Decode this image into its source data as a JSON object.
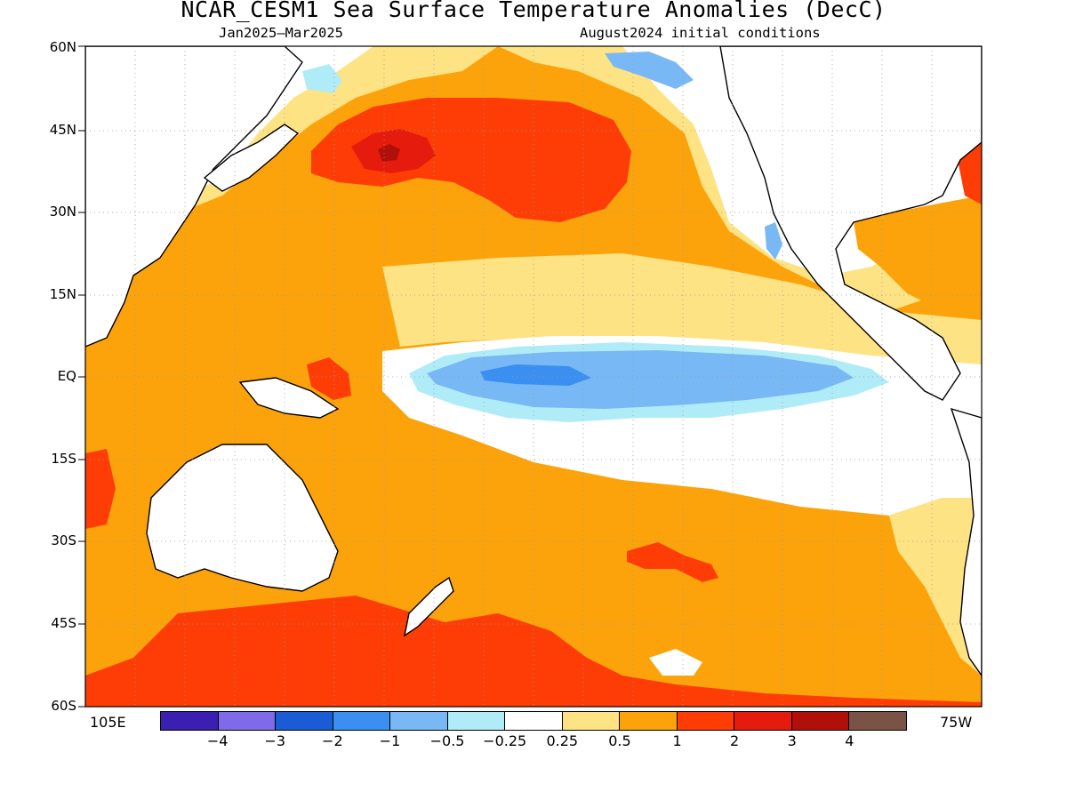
{
  "title": "NCAR_CESM1 Sea Surface Temperature Anomalies (DecC)",
  "subtitle_left": "Jan2025–Mar2025",
  "subtitle_right": "August2024 initial conditions",
  "axes": {
    "lat_labels": [
      "60N",
      "45N",
      "30N",
      "15N",
      "EQ",
      "15S",
      "30S",
      "45S",
      "60S"
    ],
    "lon_left": "105E",
    "lon_right": "75W"
  },
  "legend": {
    "colors": [
      "#3a1fb0",
      "#7f6bea",
      "#1a5bd6",
      "#3a8ff0",
      "#78b8f5",
      "#b0ecf8",
      "#ffffff",
      "#fee384",
      "#fca30c",
      "#fd3d05",
      "#e51c0d",
      "#b00f0a",
      "#7a5246"
    ],
    "labels": [
      "−4",
      "−3",
      "−2",
      "−1",
      "−0.5",
      "−0.25",
      "0.25",
      "0.5",
      "1",
      "2",
      "3",
      "4"
    ]
  },
  "anomaly_colors": {
    "strong_warm": "#b00f0a",
    "warm_3": "#e51c0d",
    "warm_2": "#fd3d05",
    "warm_1": "#fca30c",
    "warm_05": "#fee384",
    "cool_025": "#b0ecf8",
    "cool_05": "#78b8f5",
    "cool_1": "#3a8ff0",
    "land": "#ffffff",
    "coast": "#000000"
  }
}
